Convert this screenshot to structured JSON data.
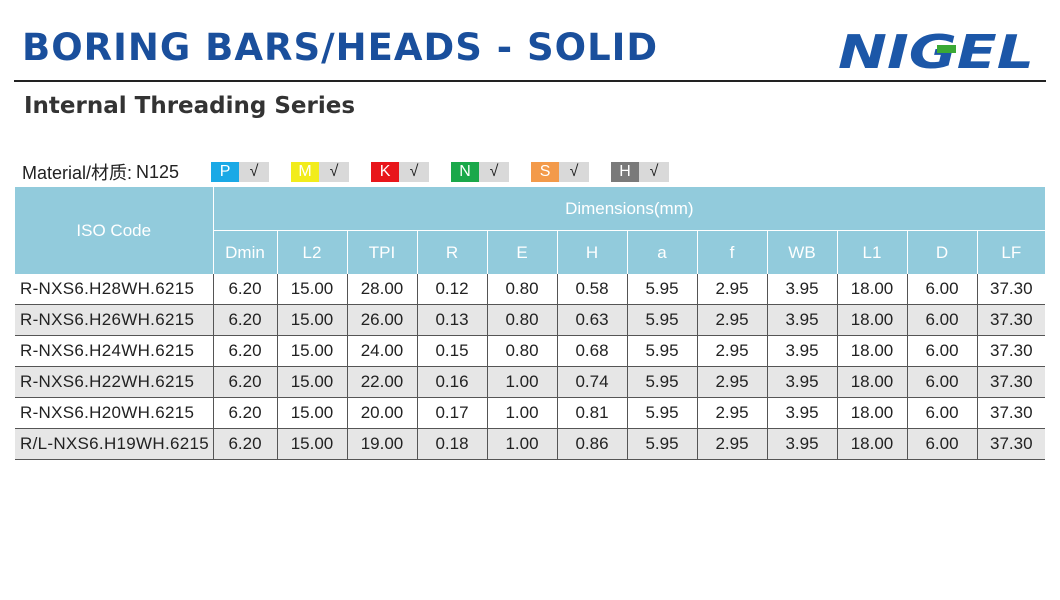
{
  "header": {
    "title": "BORING BARS/HEADS - SOLID",
    "subtitle": "Internal Threading Series",
    "logo_text": "NIGEL"
  },
  "material": {
    "label": "Material/材质:",
    "grade": "N125",
    "badges": [
      {
        "letter": "P",
        "check": "√",
        "color": "#1aa9e6"
      },
      {
        "letter": "M",
        "check": "√",
        "color": "#f2ec1b"
      },
      {
        "letter": "K",
        "check": "√",
        "color": "#e8161b"
      },
      {
        "letter": "N",
        "check": "√",
        "color": "#1aa84a"
      },
      {
        "letter": "S",
        "check": "√",
        "color": "#f39a4a"
      },
      {
        "letter": "H",
        "check": "√",
        "color": "#7a7a7a"
      }
    ]
  },
  "table": {
    "iso_header": "ISO Code",
    "dims_header": "Dimensions(mm)",
    "columns": [
      "Dmin",
      "L2",
      "TPI",
      "R",
      "E",
      "H",
      "a",
      "f",
      "WB",
      "L1",
      "D",
      "LF"
    ],
    "rows": [
      {
        "code": "R-NXS6.H28WH.6215",
        "values": [
          "6.20",
          "15.00",
          "28.00",
          "0.12",
          "0.80",
          "0.58",
          "5.95",
          "2.95",
          "3.95",
          "18.00",
          "6.00",
          "37.30"
        ]
      },
      {
        "code": "R-NXS6.H26WH.6215",
        "values": [
          "6.20",
          "15.00",
          "26.00",
          "0.13",
          "0.80",
          "0.63",
          "5.95",
          "2.95",
          "3.95",
          "18.00",
          "6.00",
          "37.30"
        ]
      },
      {
        "code": "R-NXS6.H24WH.6215",
        "values": [
          "6.20",
          "15.00",
          "24.00",
          "0.15",
          "0.80",
          "0.68",
          "5.95",
          "2.95",
          "3.95",
          "18.00",
          "6.00",
          "37.30"
        ]
      },
      {
        "code": "R-NXS6.H22WH.6215",
        "values": [
          "6.20",
          "15.00",
          "22.00",
          "0.16",
          "1.00",
          "0.74",
          "5.95",
          "2.95",
          "3.95",
          "18.00",
          "6.00",
          "37.30"
        ]
      },
      {
        "code": "R-NXS6.H20WH.6215",
        "values": [
          "6.20",
          "15.00",
          "20.00",
          "0.17",
          "1.00",
          "0.81",
          "5.95",
          "2.95",
          "3.95",
          "18.00",
          "6.00",
          "37.30"
        ]
      },
      {
        "code": "R/L-NXS6.H19WH.6215",
        "values": [
          "6.20",
          "15.00",
          "19.00",
          "0.18",
          "1.00",
          "0.86",
          "5.95",
          "2.95",
          "3.95",
          "18.00",
          "6.00",
          "37.30"
        ]
      }
    ]
  },
  "colors": {
    "title": "#1a4f9c",
    "logo_blue": "#1c57a8",
    "logo_green": "#3aa935",
    "header_bg": "#92cbdc",
    "row_alt": "#e6e6e6"
  }
}
